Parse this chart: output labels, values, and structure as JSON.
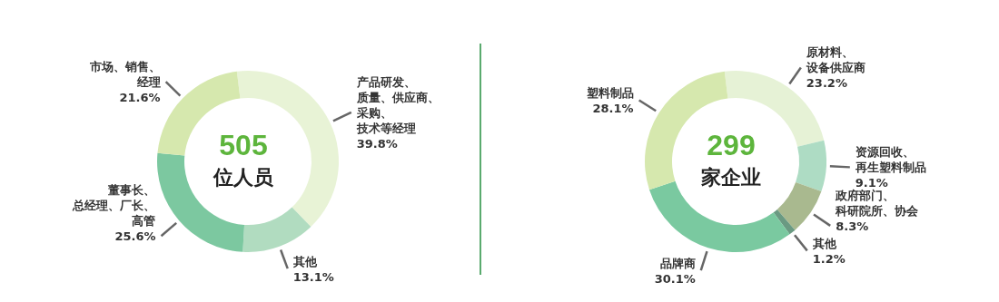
{
  "chart_data": [
    {
      "type": "donut",
      "categories": [
        "产品研发、质量、供应商、采购、技术等经理",
        "其他",
        "董事长、总经理、厂长、高管",
        "市场、销售、经理"
      ],
      "values": [
        39.8,
        13.1,
        25.6,
        21.6
      ],
      "value_labels": [
        "39.8%",
        "13.1%",
        "25.6%",
        "21.6%"
      ],
      "colors": [
        "#e8f3d6",
        "#b1dcc0",
        "#7cc8a0",
        "#d6e8ae"
      ],
      "annotations": [
        "505",
        "位人员"
      ]
    },
    {
      "type": "donut",
      "categories": [
        "原材料、设备供应商",
        "资源回收、再生塑料制品",
        "政府部门、科研院所、协会",
        "其他",
        "品牌商",
        "塑料制品"
      ],
      "values": [
        23.2,
        9.1,
        8.3,
        1.2,
        30.1,
        28.1
      ],
      "value_labels": [
        "23.2%",
        "9.1%",
        "8.3%",
        "1.2%",
        "30.1%",
        "28.1%"
      ],
      "colors": [
        "#e6f2d6",
        "#aedcc4",
        "#a9b98f",
        "#6a9a82",
        "#7ac9a0",
        "#d6e8ae"
      ],
      "annotations": [
        "299",
        "家企业"
      ]
    }
  ]
}
